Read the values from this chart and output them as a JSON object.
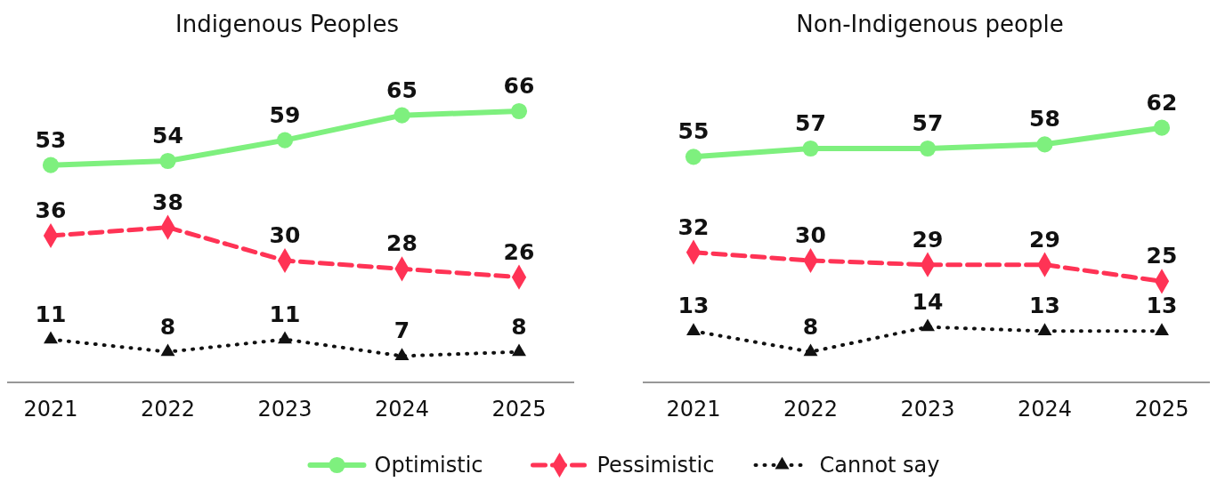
{
  "chart_data": [
    {
      "type": "line",
      "title": "Indigenous Peoples",
      "categories": [
        "2021",
        "2022",
        "2023",
        "2024",
        "2025"
      ],
      "data_labels": true,
      "legend": "bottom",
      "series": [
        {
          "name": "Optimistic",
          "color": "#7ef07e",
          "values": [
            53,
            54,
            59,
            65,
            66
          ],
          "marker": "circle",
          "line_style": "solid"
        },
        {
          "name": "Pessimistic",
          "color": "#ff3355",
          "values": [
            36,
            38,
            30,
            28,
            26
          ],
          "marker": "diamond",
          "line_style": "dashed"
        },
        {
          "name": "Cannot say",
          "color": "#111111",
          "values": [
            11,
            8,
            11,
            7,
            8
          ],
          "marker": "triangle",
          "line_style": "dotted"
        }
      ]
    },
    {
      "type": "line",
      "title": "Non-Indigenous people",
      "categories": [
        "2021",
        "2022",
        "2023",
        "2024",
        "2025"
      ],
      "data_labels": true,
      "series": [
        {
          "color": "#7ef07e",
          "values": [
            55,
            57,
            57,
            58,
            62
          ],
          "marker": "circle",
          "line_style": "solid"
        },
        {
          "color": "#ff3355",
          "values": [
            32,
            30,
            29,
            29,
            25
          ],
          "marker": "diamond",
          "line_style": "dashed"
        },
        {
          "color": "#111111",
          "values": [
            13,
            8,
            14,
            13,
            13
          ],
          "marker": "triangle",
          "line_style": "dotted"
        }
      ]
    }
  ]
}
